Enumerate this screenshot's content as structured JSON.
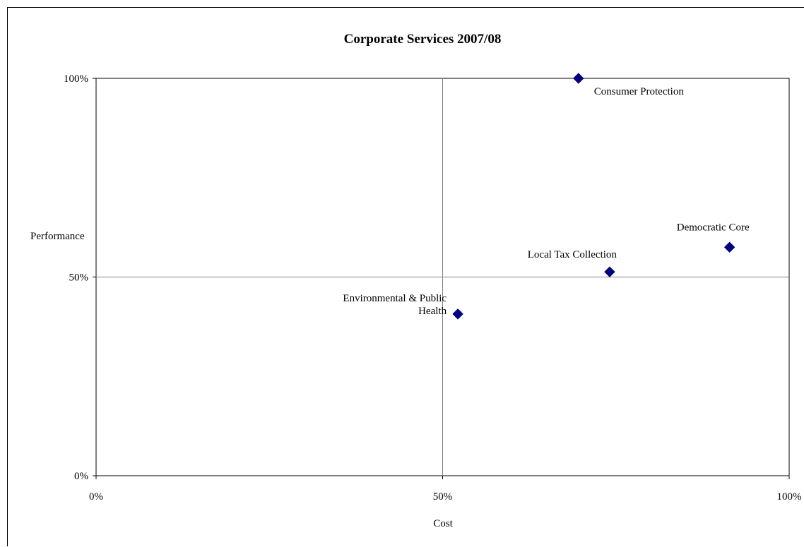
{
  "chart_data": {
    "type": "scatter",
    "title": "Corporate Services 2007/08",
    "xlabel": "Cost",
    "ylabel": "Performance",
    "xlim": [
      0,
      100
    ],
    "ylim": [
      0,
      100
    ],
    "x_ticks": [
      "0%",
      "50%",
      "100%"
    ],
    "y_ticks": [
      "0%",
      "50%",
      "100%"
    ],
    "grid": "midlines at 50%",
    "legend": "none",
    "marker": "diamond",
    "marker_color": "#000080",
    "points": [
      {
        "label": "Consumer Protection",
        "x": 69.6,
        "y": 100
      },
      {
        "label": "Democratic Core",
        "x": 91.4,
        "y": 57.5
      },
      {
        "label": "Local Tax Collection",
        "x": 74.1,
        "y": 51.3
      },
      {
        "label": "Environmental & Public Health",
        "label_lines": [
          "Environmental & Public",
          "Health"
        ],
        "x": 52.2,
        "y": 40.7
      }
    ]
  }
}
